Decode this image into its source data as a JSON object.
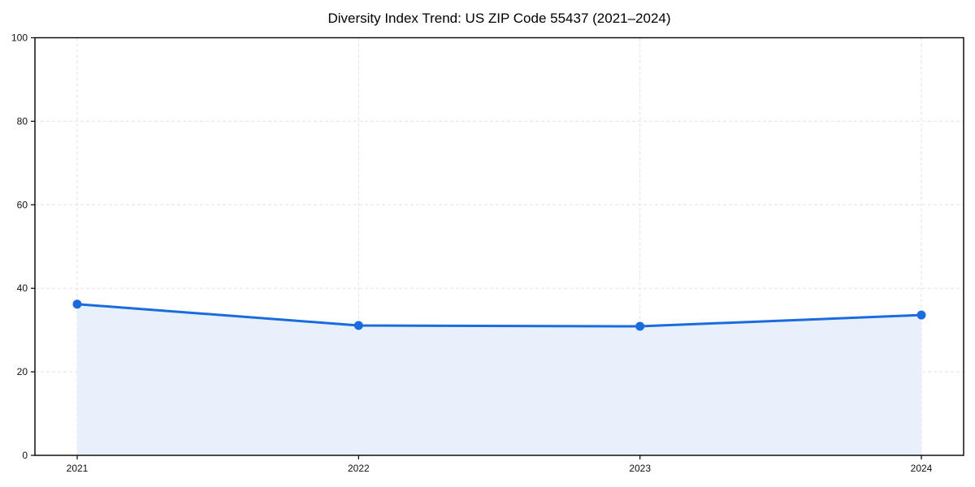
{
  "chart_data": {
    "type": "area",
    "title": "Diversity Index Trend: US ZIP Code 55437 (2021–2024)",
    "categories": [
      "2021",
      "2022",
      "2023",
      "2024"
    ],
    "values": [
      36.2,
      31.1,
      30.9,
      33.6
    ],
    "series_name": "Diversity Index",
    "xlabel": "",
    "ylabel": "",
    "ylim": [
      0,
      100
    ],
    "yticks": [
      0,
      20,
      40,
      60,
      80,
      100
    ],
    "grid": true,
    "grid_style": "dashed",
    "legend": "none",
    "marker": "circle",
    "colors": {
      "line": "#1a6cde",
      "marker": "#1a6cde",
      "fill": "#e8f0fc",
      "grid": "#e2e2e2",
      "axis": "#000000",
      "tick_label": "#111111",
      "background": "#ffffff"
    }
  }
}
